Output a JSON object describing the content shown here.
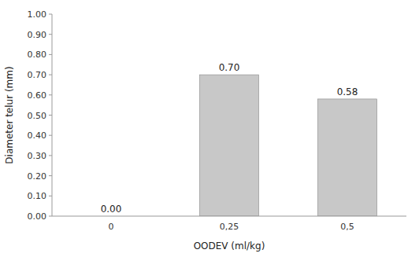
{
  "chart_data": {
    "type": "bar",
    "categories": [
      "0",
      "0,25",
      "0,5"
    ],
    "values": [
      0.0,
      0.7,
      0.58
    ],
    "value_labels": [
      "0.00",
      "0.70",
      "0.58"
    ],
    "data_labels": true,
    "color": "#c8c8c8",
    "xlabel": "OODEV (ml/kg)",
    "ylabel": "Diameter telur (mm)",
    "ylim": [
      0.0,
      1.0
    ],
    "yticks": [
      {
        "value": 0.0,
        "label": "0.00"
      },
      {
        "value": 0.1,
        "label": "0.10"
      },
      {
        "value": 0.2,
        "label": "0.20"
      },
      {
        "value": 0.3,
        "label": "0.30"
      },
      {
        "value": 0.4,
        "label": "0.40"
      },
      {
        "value": 0.5,
        "label": "0.50"
      },
      {
        "value": 0.6,
        "label": "0.60"
      },
      {
        "value": 0.7,
        "label": "0.70"
      },
      {
        "value": 0.8,
        "label": "0.80"
      },
      {
        "value": 0.9,
        "label": "0.90"
      },
      {
        "value": 1.0,
        "label": "1.00"
      }
    ],
    "grid": false
  }
}
